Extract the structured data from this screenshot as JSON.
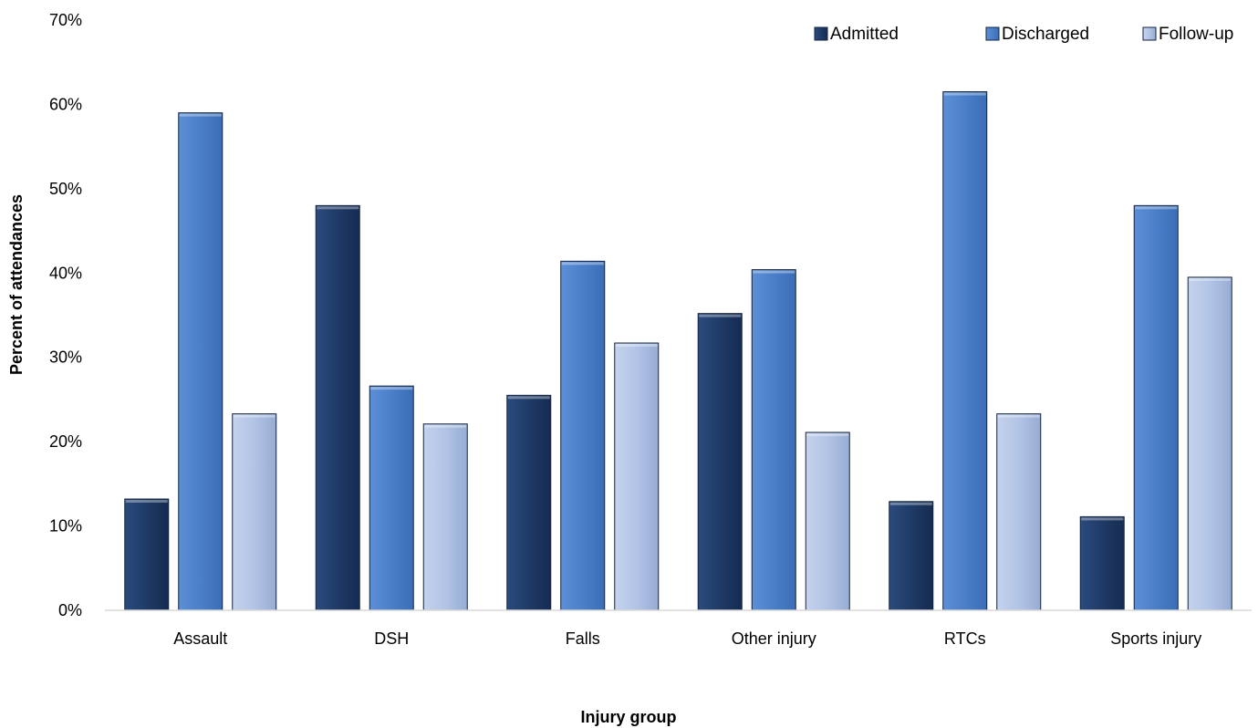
{
  "chart_data": {
    "type": "bar",
    "title": "",
    "xlabel": "Injury group",
    "ylabel": "Percent of attendances",
    "categories": [
      "Assault",
      "DSH",
      "Falls",
      "Other injury",
      "RTCs",
      "Sports injury"
    ],
    "series": [
      {
        "name": "Admitted",
        "color": "#1f3a66",
        "values": [
          13.2,
          48.0,
          25.5,
          35.2,
          12.9,
          11.1
        ]
      },
      {
        "name": "Discharged",
        "color": "#4a7fc9",
        "values": [
          59.0,
          26.6,
          41.4,
          40.4,
          61.5,
          48.0
        ]
      },
      {
        "name": "Follow-up",
        "color": "#a9bde0",
        "values": [
          23.3,
          22.1,
          31.7,
          21.1,
          23.3,
          39.5
        ]
      }
    ],
    "ylim": [
      0,
      70
    ],
    "yticks": [
      "0%",
      "10%",
      "20%",
      "30%",
      "40%",
      "50%",
      "60%",
      "70%"
    ],
    "grid": false,
    "legend": "top-right"
  }
}
